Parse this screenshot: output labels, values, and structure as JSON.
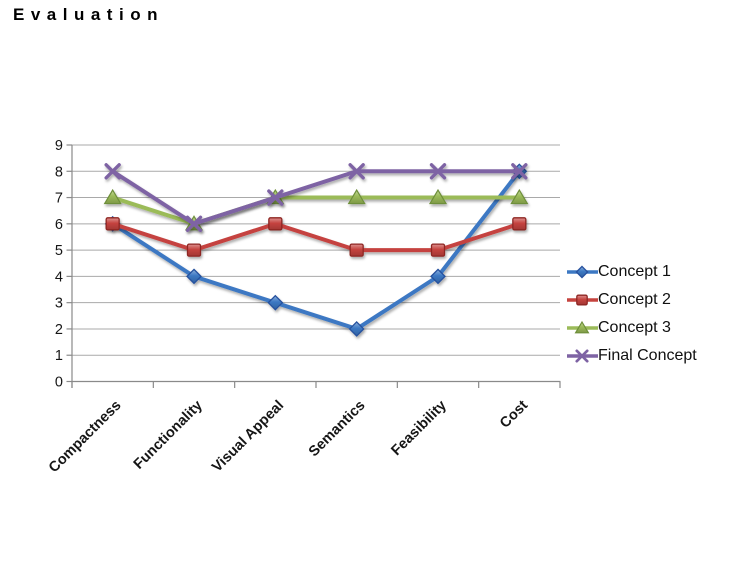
{
  "title": "Evaluation",
  "chart_data": {
    "type": "line",
    "title": "Evaluation",
    "categories": [
      "Compactness",
      "Functionality",
      "Visual Appeal",
      "Semantics",
      "Feasibility",
      "Cost"
    ],
    "series": [
      {
        "name": "Concept 1",
        "values": [
          6,
          4,
          3,
          2,
          4,
          8
        ],
        "color": "#3C78C3",
        "marker": "diamond",
        "marker_edge": "#27519E"
      },
      {
        "name": "Concept 2",
        "values": [
          6,
          5,
          6,
          5,
          5,
          6
        ],
        "color": "#C5433F",
        "marker": "square",
        "marker_edge": "#8E2724"
      },
      {
        "name": "Concept 3",
        "values": [
          7,
          6,
          7,
          7,
          7,
          7
        ],
        "color": "#9BBB59",
        "marker": "triangle",
        "marker_edge": "#6E8F3A"
      },
      {
        "name": "Final Concept",
        "values": [
          8,
          6,
          7,
          8,
          8,
          8
        ],
        "color": "#7E63A4",
        "marker": "x",
        "marker_edge": "#5E4880"
      }
    ],
    "ylim": [
      0,
      9
    ],
    "ytick_step": 1,
    "xlabel": "",
    "ylabel": "",
    "grid": true,
    "legend_position": "right",
    "colors": {
      "axis": "#8A8A8A",
      "gridline": "#A9A9A9",
      "text": "#161616"
    }
  }
}
